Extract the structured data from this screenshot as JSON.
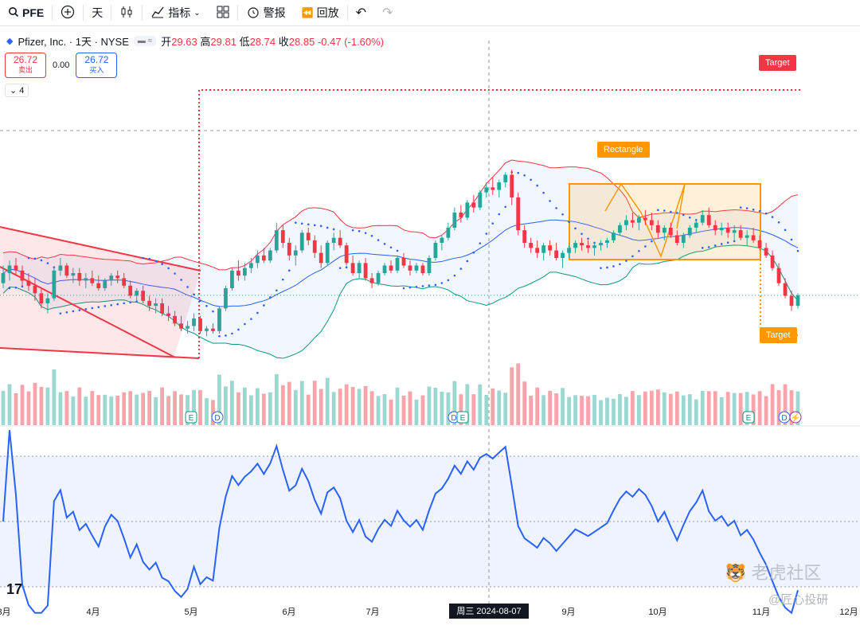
{
  "toolbar": {
    "symbol": "PFE",
    "interval": "天",
    "indicators": "指标",
    "alert": "警报",
    "replay": "回放"
  },
  "legend": {
    "name": "Pfizer, Inc. · 1天 · NYSE",
    "open_label": "开",
    "open": "29.63",
    "high_label": "高",
    "high": "29.81",
    "low_label": "低",
    "low": "28.74",
    "close_label": "收",
    "close": "28.85",
    "change": "-0.47 (-1.60%)"
  },
  "trade": {
    "sell_price": "26.72",
    "sell_label": "卖出",
    "spread": "0.00",
    "buy_price": "26.72",
    "buy_label": "买入",
    "collapse": "4"
  },
  "drawings": {
    "target_top": "Target",
    "rectangle": "Rectangle",
    "target_bottom": "Target"
  },
  "events": [
    "E",
    "D",
    "D",
    "E",
    "E",
    "D"
  ],
  "watermark": {
    "site": "老虎社区",
    "author": "@匠心投研"
  },
  "crosshair_date": "周三 2024-08-07",
  "colors": {
    "up": "#26a69a",
    "down": "#f23645",
    "bb_upper": "#f23645",
    "bb_basis": "#2962ff",
    "bb_lower": "#089981",
    "sar": "#2962ff",
    "rsi": "#2962ff",
    "rectangle": "#ff9800",
    "triangle": "#f23645"
  },
  "chart_data": {
    "type": "candlestick",
    "x_ticks": [
      "3月",
      "4月",
      "5月",
      "6月",
      "7月",
      "8月",
      "9月",
      "10月",
      "11月",
      "12月"
    ],
    "series": [
      {
        "name": "PFE",
        "values": [
          [
            27.2,
            27.9,
            27.0,
            27.6
          ],
          [
            27.6,
            28.1,
            27.3,
            27.9
          ],
          [
            27.9,
            28.2,
            27.5,
            27.7
          ],
          [
            27.7,
            27.9,
            27.1,
            27.3
          ],
          [
            27.3,
            27.6,
            26.9,
            27.1
          ],
          [
            27.1,
            27.4,
            26.5,
            26.8
          ],
          [
            26.8,
            27.0,
            26.2,
            26.4
          ],
          [
            26.4,
            26.8,
            26.0,
            26.6
          ],
          [
            26.6,
            27.8,
            26.5,
            27.7
          ],
          [
            27.7,
            28.2,
            27.5,
            27.9
          ],
          [
            27.9,
            28.0,
            27.4,
            27.5
          ],
          [
            27.5,
            27.8,
            27.2,
            27.6
          ],
          [
            27.6,
            27.8,
            27.1,
            27.3
          ],
          [
            27.3,
            27.6,
            27.0,
            27.4
          ],
          [
            27.4,
            27.7,
            27.1,
            27.2
          ],
          [
            27.2,
            27.5,
            26.9,
            27.0
          ],
          [
            27.0,
            27.4,
            26.9,
            27.3
          ],
          [
            27.3,
            27.6,
            27.1,
            27.5
          ],
          [
            27.5,
            27.7,
            27.2,
            27.4
          ],
          [
            27.4,
            27.6,
            27.0,
            27.1
          ],
          [
            27.1,
            27.3,
            26.6,
            26.7
          ],
          [
            26.7,
            27.0,
            26.5,
            26.9
          ],
          [
            26.9,
            27.1,
            26.4,
            26.5
          ],
          [
            26.5,
            26.7,
            26.1,
            26.3
          ],
          [
            26.3,
            26.6,
            26.0,
            26.4
          ],
          [
            26.4,
            26.6,
            25.9,
            26.0
          ],
          [
            26.0,
            26.3,
            25.7,
            25.9
          ],
          [
            25.9,
            26.1,
            25.5,
            25.6
          ],
          [
            25.6,
            25.9,
            25.3,
            25.4
          ],
          [
            25.4,
            25.7,
            25.2,
            25.5
          ],
          [
            25.5,
            26.0,
            25.3,
            25.8
          ],
          [
            25.8,
            25.9,
            25.2,
            25.3
          ],
          [
            25.3,
            25.5,
            25.1,
            25.4
          ],
          [
            25.4,
            25.6,
            25.2,
            25.3
          ],
          [
            25.3,
            26.3,
            25.2,
            26.2
          ],
          [
            26.2,
            27.1,
            26.1,
            27.0
          ],
          [
            27.0,
            27.8,
            26.9,
            27.7
          ],
          [
            27.7,
            28.1,
            27.3,
            27.5
          ],
          [
            27.5,
            28.0,
            27.3,
            27.8
          ],
          [
            27.8,
            28.2,
            27.6,
            28.0
          ],
          [
            28.0,
            28.5,
            27.8,
            28.3
          ],
          [
            28.3,
            28.6,
            28.0,
            28.1
          ],
          [
            28.1,
            28.6,
            28.0,
            28.5
          ],
          [
            28.5,
            29.6,
            28.4,
            29.3
          ],
          [
            29.3,
            29.5,
            28.6,
            28.8
          ],
          [
            28.8,
            29.0,
            28.1,
            28.3
          ],
          [
            28.3,
            28.7,
            27.9,
            28.5
          ],
          [
            28.5,
            29.3,
            28.4,
            29.2
          ],
          [
            29.2,
            29.4,
            28.7,
            28.9
          ],
          [
            28.9,
            29.1,
            28.2,
            28.4
          ],
          [
            28.4,
            28.7,
            27.8,
            28.0
          ],
          [
            28.0,
            28.9,
            27.9,
            28.8
          ],
          [
            28.8,
            29.2,
            28.5,
            29.0
          ],
          [
            29.0,
            29.3,
            28.6,
            28.7
          ],
          [
            28.7,
            28.8,
            27.9,
            28.0
          ],
          [
            28.0,
            28.3,
            27.5,
            27.6
          ],
          [
            27.6,
            28.1,
            27.4,
            28.0
          ],
          [
            28.0,
            28.2,
            27.3,
            27.4
          ],
          [
            27.4,
            27.6,
            27.0,
            27.2
          ],
          [
            27.2,
            27.7,
            27.1,
            27.6
          ],
          [
            27.6,
            28.0,
            27.5,
            27.9
          ],
          [
            27.9,
            28.1,
            27.6,
            27.7
          ],
          [
            27.7,
            28.3,
            27.6,
            28.2
          ],
          [
            28.2,
            28.4,
            27.8,
            27.9
          ],
          [
            27.9,
            28.1,
            27.5,
            27.7
          ],
          [
            27.7,
            28.0,
            27.6,
            27.9
          ],
          [
            27.9,
            28.0,
            27.5,
            27.6
          ],
          [
            27.6,
            28.3,
            27.5,
            28.2
          ],
          [
            28.2,
            28.9,
            28.1,
            28.8
          ],
          [
            28.8,
            29.1,
            28.5,
            29.0
          ],
          [
            29.0,
            29.6,
            28.9,
            29.4
          ],
          [
            29.4,
            30.2,
            29.3,
            30.0
          ],
          [
            30.0,
            30.3,
            29.6,
            29.8
          ],
          [
            29.8,
            30.5,
            29.7,
            30.4
          ],
          [
            30.4,
            30.7,
            30.0,
            30.2
          ],
          [
            30.2,
            30.9,
            30.1,
            30.8
          ],
          [
            30.8,
            31.2,
            30.6,
            31.0
          ],
          [
            31.0,
            31.4,
            30.7,
            30.9
          ],
          [
            30.9,
            31.3,
            30.6,
            31.2
          ],
          [
            31.2,
            31.6,
            31.0,
            31.5
          ],
          [
            31.5,
            31.7,
            30.3,
            30.6
          ],
          [
            30.6,
            30.8,
            29.1,
            29.3
          ],
          [
            29.3,
            29.5,
            28.6,
            28.8
          ],
          [
            28.8,
            29.0,
            28.4,
            28.6
          ],
          [
            28.6,
            28.9,
            28.2,
            28.4
          ],
          [
            28.4,
            28.8,
            28.1,
            28.7
          ],
          [
            28.7,
            28.9,
            28.3,
            28.5
          ],
          [
            28.5,
            28.8,
            28.1,
            28.2
          ],
          [
            28.2,
            28.5,
            27.8,
            28.4
          ],
          [
            28.4,
            28.7,
            28.2,
            28.6
          ],
          [
            28.6,
            28.9,
            28.4,
            28.8
          ],
          [
            28.8,
            29.0,
            28.5,
            28.7
          ],
          [
            28.7,
            28.9,
            28.4,
            28.6
          ],
          [
            28.6,
            28.8,
            28.3,
            28.7
          ],
          [
            28.7,
            28.9,
            28.5,
            28.8
          ],
          [
            28.8,
            29.0,
            28.6,
            28.9
          ],
          [
            28.9,
            29.3,
            28.8,
            29.2
          ],
          [
            29.2,
            29.6,
            29.1,
            29.5
          ],
          [
            29.5,
            29.9,
            29.3,
            29.7
          ],
          [
            29.7,
            30.0,
            29.4,
            29.6
          ],
          [
            29.6,
            29.9,
            29.3,
            29.8
          ],
          [
            29.8,
            30.1,
            29.5,
            29.7
          ],
          [
            29.7,
            30.0,
            29.3,
            29.5
          ],
          [
            29.5,
            29.7,
            29.0,
            29.2
          ],
          [
            29.2,
            29.5,
            28.9,
            29.4
          ],
          [
            29.4,
            29.6,
            29.0,
            29.1
          ],
          [
            29.1,
            29.3,
            28.7,
            28.8
          ],
          [
            28.8,
            29.2,
            28.6,
            29.1
          ],
          [
            29.1,
            29.5,
            29.0,
            29.4
          ],
          [
            29.4,
            29.7,
            29.2,
            29.6
          ],
          [
            29.6,
            30.1,
            29.5,
            29.9
          ],
          [
            29.9,
            30.2,
            29.4,
            29.5
          ],
          [
            29.5,
            29.7,
            29.1,
            29.3
          ],
          [
            29.3,
            29.6,
            29.1,
            29.4
          ],
          [
            29.4,
            29.6,
            29.0,
            29.2
          ],
          [
            29.2,
            29.5,
            28.9,
            29.3
          ],
          [
            29.3,
            29.5,
            28.9,
            29.0
          ],
          [
            29.0,
            29.3,
            28.7,
            29.1
          ],
          [
            29.1,
            29.4,
            28.8,
            28.9
          ],
          [
            28.9,
            29.1,
            28.5,
            28.6
          ],
          [
            28.6,
            28.8,
            28.2,
            28.3
          ],
          [
            28.3,
            28.5,
            27.7,
            27.8
          ],
          [
            27.8,
            28.0,
            27.1,
            27.2
          ],
          [
            27.2,
            27.4,
            26.6,
            26.7
          ],
          [
            26.7,
            26.9,
            26.1,
            26.3
          ],
          [
            26.3,
            26.8,
            26.2,
            26.72
          ]
        ]
      }
    ],
    "bollinger": {
      "period": 20,
      "stddev": 2
    },
    "rsi": {
      "period": 14,
      "bands": [
        30,
        50,
        70
      ]
    },
    "last_close": 26.72
  }
}
